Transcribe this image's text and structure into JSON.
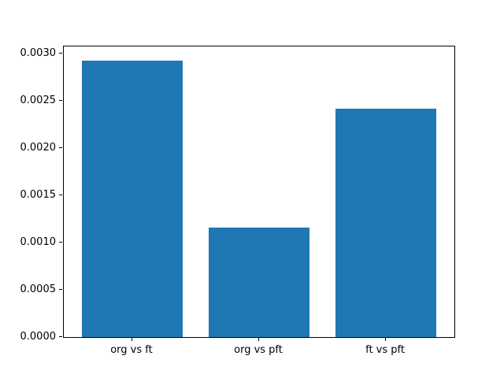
{
  "chart_data": {
    "type": "bar",
    "categories": [
      "org vs ft",
      "org vs pft",
      "ft vs pft"
    ],
    "values": [
      0.00293,
      0.00116,
      0.00242
    ],
    "title": "",
    "xlabel": "",
    "ylabel": "",
    "ylim": [
      0,
      0.003077
    ],
    "yticks": [
      0.0,
      0.0005,
      0.001,
      0.0015,
      0.002,
      0.0025,
      0.003
    ],
    "ytick_labels": [
      "0.0000",
      "0.0005",
      "0.0010",
      "0.0015",
      "0.0020",
      "0.0025",
      "0.0030"
    ],
    "bar_color": "#1f77b4",
    "grid": false,
    "legend_position": "none"
  },
  "colors": {
    "background": "#ffffff",
    "spine": "#000000",
    "bar": "#1f77b4"
  }
}
